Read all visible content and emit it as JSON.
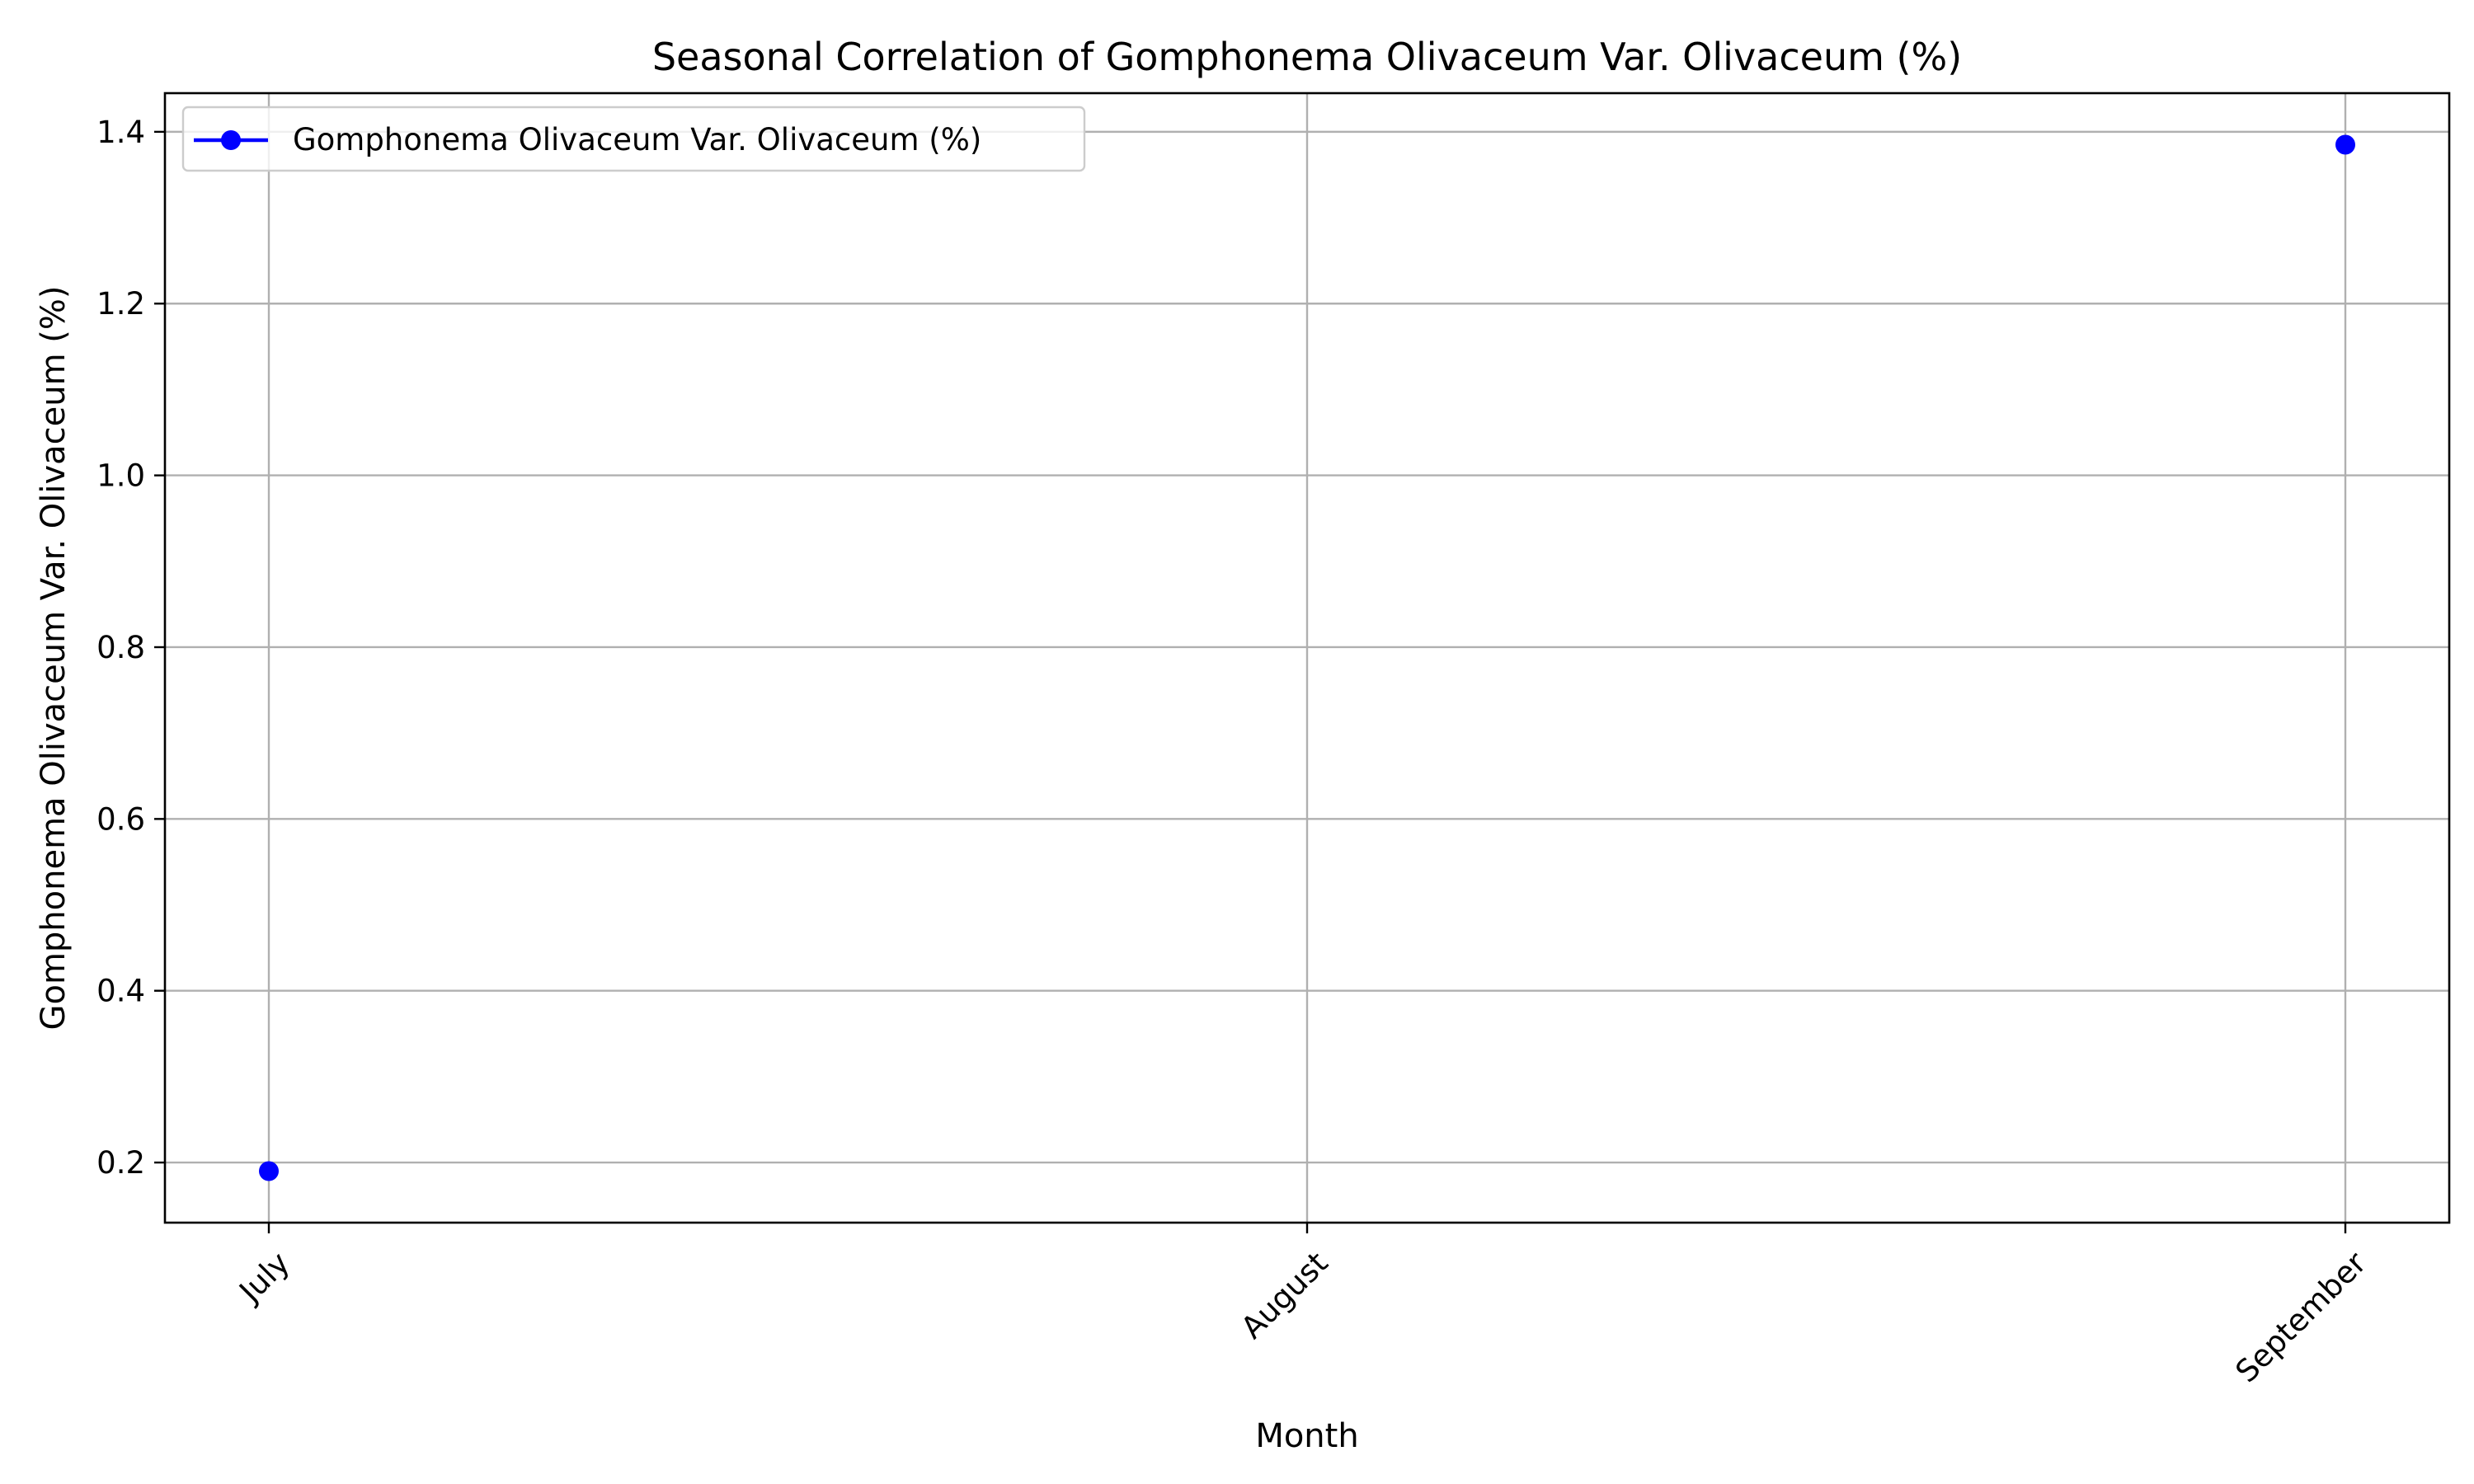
{
  "chart_data": {
    "type": "line",
    "title": "Seasonal Correlation of Gomphonema Olivaceum Var. Olivaceum (%)",
    "xlabel": "Month",
    "ylabel": "Gomphonema Olivaceum Var. Olivaceum (%)",
    "categories": [
      "July",
      "August",
      "September"
    ],
    "series": [
      {
        "name": "Gomphonema Olivaceum Var. Olivaceum (%)",
        "values": [
          0.19,
          null,
          1.385
        ],
        "color": "#0000ff",
        "marker": "circle"
      }
    ],
    "ylim": [
      0.13,
      1.445
    ],
    "yticks": [
      "0.2",
      "0.4",
      "0.6",
      "0.8",
      "1.0",
      "1.2",
      "1.4"
    ],
    "ytick_values": [
      0.2,
      0.4,
      0.6,
      0.8,
      1.0,
      1.2,
      1.4
    ],
    "grid": true,
    "legend_position": "top-left",
    "xtick_rotation": -45
  }
}
